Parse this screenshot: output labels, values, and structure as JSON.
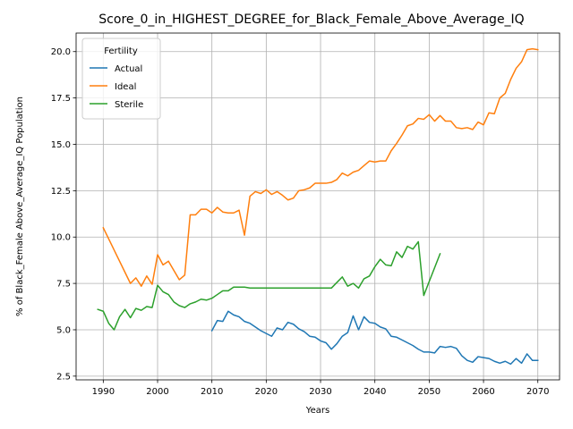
{
  "chart_data": {
    "type": "line",
    "title": "Score_0_in_HIGHEST_DEGREE_for_Black_Female_Above_Average_IQ",
    "xlabel": "Years",
    "ylabel": "% of Black_Female Above_Average_IQ Population",
    "xlim": [
      1985,
      2074
    ],
    "ylim": [
      2.3,
      21.0
    ],
    "xticks": [
      1990,
      2000,
      2010,
      2020,
      2030,
      2040,
      2050,
      2060,
      2070
    ],
    "yticks": [
      2.5,
      5.0,
      7.5,
      10.0,
      12.5,
      15.0,
      17.5,
      20.0
    ],
    "xtick_labels": [
      "1990",
      "2000",
      "2010",
      "2020",
      "2030",
      "2040",
      "2050",
      "2060",
      "2070"
    ],
    "ytick_labels": [
      "2.5",
      "5.0",
      "7.5",
      "10.0",
      "12.5",
      "15.0",
      "17.5",
      "20.0"
    ],
    "grid": true,
    "legend": {
      "title": "Fertility",
      "placement": "top-left"
    },
    "series": [
      {
        "name": "Actual",
        "color": "#1f77b4",
        "x": [
          2010,
          2011,
          2012,
          2013,
          2014,
          2015,
          2016,
          2017,
          2018,
          2019,
          2020,
          2021,
          2022,
          2023,
          2024,
          2025,
          2026,
          2027,
          2028,
          2029,
          2030,
          2031,
          2032,
          2033,
          2034,
          2035,
          2036,
          2037,
          2038,
          2039,
          2040,
          2041,
          2042,
          2043,
          2044,
          2045,
          2046,
          2047,
          2048,
          2049,
          2050,
          2051,
          2052,
          2053,
          2054,
          2055,
          2056,
          2057,
          2058,
          2059,
          2060,
          2061,
          2062,
          2063,
          2064,
          2065,
          2066,
          2067,
          2068,
          2069,
          2070
        ],
        "values": [
          4.95,
          5.5,
          5.45,
          6.0,
          5.8,
          5.7,
          5.45,
          5.35,
          5.15,
          4.95,
          4.8,
          4.65,
          5.1,
          5.0,
          5.4,
          5.3,
          5.05,
          4.9,
          4.65,
          4.6,
          4.4,
          4.3,
          3.95,
          4.25,
          4.65,
          4.85,
          5.75,
          5.0,
          5.7,
          5.4,
          5.35,
          5.15,
          5.05,
          4.65,
          4.6,
          4.45,
          4.3,
          4.15,
          3.95,
          3.8,
          3.8,
          3.75,
          4.1,
          4.05,
          4.1,
          4.0,
          3.6,
          3.35,
          3.25,
          3.55,
          3.5,
          3.45,
          3.3,
          3.2,
          3.3,
          3.15,
          3.45,
          3.2,
          3.7,
          3.35,
          3.35
        ]
      },
      {
        "name": "Ideal",
        "color": "#ff7f0e",
        "x": [
          1990,
          1995,
          1996,
          1997,
          1998,
          1999,
          2000,
          2001,
          2002,
          2003,
          2004,
          2005,
          2006,
          2007,
          2008,
          2009,
          2010,
          2011,
          2012,
          2013,
          2014,
          2015,
          2016,
          2017,
          2018,
          2019,
          2020,
          2021,
          2022,
          2023,
          2024,
          2025,
          2026,
          2027,
          2028,
          2029,
          2030,
          2031,
          2032,
          2033,
          2034,
          2035,
          2036,
          2037,
          2038,
          2039,
          2040,
          2041,
          2042,
          2043,
          2044,
          2045,
          2046,
          2047,
          2048,
          2049,
          2050,
          2051,
          2052,
          2053,
          2054,
          2055,
          2056,
          2057,
          2058,
          2059,
          2060,
          2061,
          2062,
          2063,
          2064,
          2065,
          2066,
          2067,
          2068,
          2069,
          2070
        ],
        "values": [
          10.5,
          7.5,
          7.8,
          7.35,
          7.9,
          7.45,
          9.05,
          8.5,
          8.7,
          8.2,
          7.7,
          7.95,
          11.2,
          11.2,
          11.5,
          11.5,
          11.3,
          11.6,
          11.35,
          11.3,
          11.3,
          11.45,
          10.1,
          12.2,
          12.45,
          12.35,
          12.55,
          12.3,
          12.45,
          12.25,
          12.0,
          12.1,
          12.5,
          12.55,
          12.65,
          12.9,
          12.9,
          12.9,
          12.95,
          13.1,
          13.45,
          13.3,
          13.5,
          13.6,
          13.85,
          14.1,
          14.05,
          14.1,
          14.1,
          14.65,
          15.05,
          15.5,
          16.0,
          16.1,
          16.4,
          16.35,
          16.6,
          16.25,
          16.55,
          16.25,
          16.25,
          15.9,
          15.85,
          15.9,
          15.8,
          16.2,
          16.05,
          16.7,
          16.65,
          17.5,
          17.75,
          18.5,
          19.1,
          19.45,
          20.1,
          20.15,
          20.1
        ]
      },
      {
        "name": "Sterile",
        "color": "#2ca02c",
        "x": [
          1989,
          1990,
          1991,
          1992,
          1993,
          1994,
          1995,
          1996,
          1997,
          1998,
          1999,
          2000,
          2001,
          2002,
          2003,
          2004,
          2005,
          2006,
          2007,
          2008,
          2009,
          2010,
          2011,
          2012,
          2013,
          2014,
          2015,
          2016,
          2017,
          2018,
          2019,
          2020,
          2021,
          2022,
          2023,
          2024,
          2025,
          2026,
          2027,
          2028,
          2029,
          2030,
          2031,
          2032,
          2033,
          2034,
          2035,
          2036,
          2037,
          2038,
          2039,
          2040,
          2041,
          2042,
          2043,
          2044,
          2045,
          2046,
          2047,
          2048,
          2049,
          2050,
          2051,
          2052
        ],
        "values": [
          6.1,
          6.0,
          5.35,
          5.0,
          5.7,
          6.1,
          5.65,
          6.15,
          6.05,
          6.25,
          6.2,
          7.4,
          7.05,
          6.9,
          6.5,
          6.3,
          6.2,
          6.4,
          6.5,
          6.65,
          6.6,
          6.7,
          6.9,
          7.1,
          7.1,
          7.3,
          7.3,
          7.3,
          7.25,
          7.25,
          7.25,
          7.25,
          7.25,
          7.25,
          7.25,
          7.25,
          7.25,
          7.25,
          7.25,
          7.25,
          7.25,
          7.25,
          7.25,
          7.25,
          7.55,
          7.85,
          7.35,
          7.5,
          7.25,
          7.75,
          7.9,
          8.4,
          8.8,
          8.5,
          8.45,
          9.2,
          8.9,
          9.5,
          9.35,
          9.75,
          6.85,
          7.6,
          8.35,
          9.1
        ]
      }
    ]
  }
}
